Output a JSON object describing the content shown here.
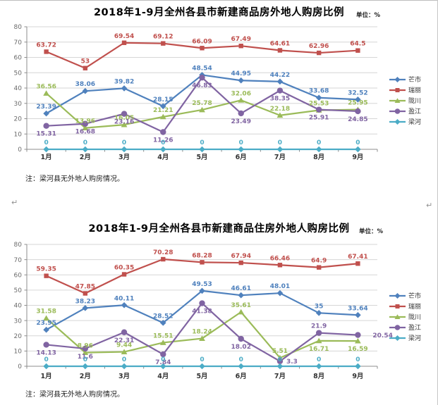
{
  "page": {
    "return_mark": "↵"
  },
  "chart_data": [
    {
      "type": "line",
      "title": "2018年1-9月全州各县市新建商品房外地人购房比例",
      "unit_label": "单位：%",
      "note": "注：梁河县无外地人购房情况。",
      "categories": [
        "1月",
        "2月",
        "3月",
        "4月",
        "5月",
        "6月",
        "7月",
        "8月",
        "9月"
      ],
      "ylim": [
        0,
        80
      ],
      "ytick_interval": 10,
      "grid": true,
      "legend_position": "right",
      "series": [
        {
          "name": "芒市",
          "color": "#4F81BD",
          "marker": "diamond",
          "label_pos": "above",
          "values": [
            23.39,
            38.06,
            39.82,
            28.15,
            48.54,
            44.95,
            44.22,
            33.68,
            32.52
          ]
        },
        {
          "name": "瑞丽",
          "color": "#C0504D",
          "marker": "square",
          "label_pos": "above",
          "values": [
            63.72,
            53,
            69.54,
            69.12,
            66.09,
            67.49,
            64.61,
            62.96,
            64.5
          ]
        },
        {
          "name": "陇川",
          "color": "#9BBB59",
          "marker": "triangle",
          "label_pos": "above",
          "values": [
            36.56,
            13.96,
            16.05,
            21.21,
            25.78,
            32.06,
            22.18,
            25.53,
            25.95
          ]
        },
        {
          "name": "盈江",
          "color": "#8064A2",
          "marker": "circle",
          "label_pos": "below",
          "values": [
            15.31,
            16.68,
            23.16,
            11.26,
            46.83,
            23.49,
            38.35,
            25.91,
            24.85
          ]
        },
        {
          "name": "梁河",
          "color": "#4BACC6",
          "marker": "diamond",
          "label_pos": "above",
          "values": [
            0,
            0,
            0,
            0,
            0,
            0,
            0,
            0,
            0
          ]
        }
      ]
    },
    {
      "type": "line",
      "title": "2018年1-9月全州各县市新建商品住房外地人购房比例",
      "unit_label": "单位：%",
      "note": "注：梁河县无外地人购房情况。",
      "categories": [
        "1月",
        "2月",
        "3月",
        "4月",
        "5月",
        "6月",
        "7月",
        "8月",
        "9月"
      ],
      "ylim": [
        0,
        80
      ],
      "ytick_interval": 10,
      "grid": true,
      "legend_position": "right",
      "series": [
        {
          "name": "芒市",
          "color": "#4F81BD",
          "marker": "diamond",
          "label_pos": "above",
          "values": [
            23.95,
            38.23,
            40.11,
            28.52,
            49.53,
            46.61,
            48.01,
            35,
            33.64
          ]
        },
        {
          "name": "瑞丽",
          "color": "#C0504D",
          "marker": "square",
          "label_pos": "above",
          "values": [
            59.35,
            47.85,
            60.35,
            70.28,
            68.28,
            67.94,
            66.46,
            64.9,
            67.41
          ]
        },
        {
          "name": "陇川",
          "color": "#9BBB59",
          "marker": "triangle",
          "label_pos": "above",
          "values": [
            31.58,
            8.96,
            9.44,
            15.51,
            18.24,
            35.61,
            5.51,
            16.71,
            16.59
          ]
        },
        {
          "name": "盈江",
          "color": "#8064A2",
          "marker": "circle",
          "label_pos": "below",
          "values": [
            14.13,
            11.6,
            22.31,
            7.84,
            41.38,
            18.02,
            3.3,
            21.9,
            20.54
          ]
        },
        {
          "name": "梁河",
          "color": "#4BACC6",
          "marker": "diamond",
          "label_pos": "above",
          "values": [
            0,
            0,
            0,
            0,
            0,
            0,
            0,
            0,
            0
          ]
        }
      ]
    }
  ]
}
